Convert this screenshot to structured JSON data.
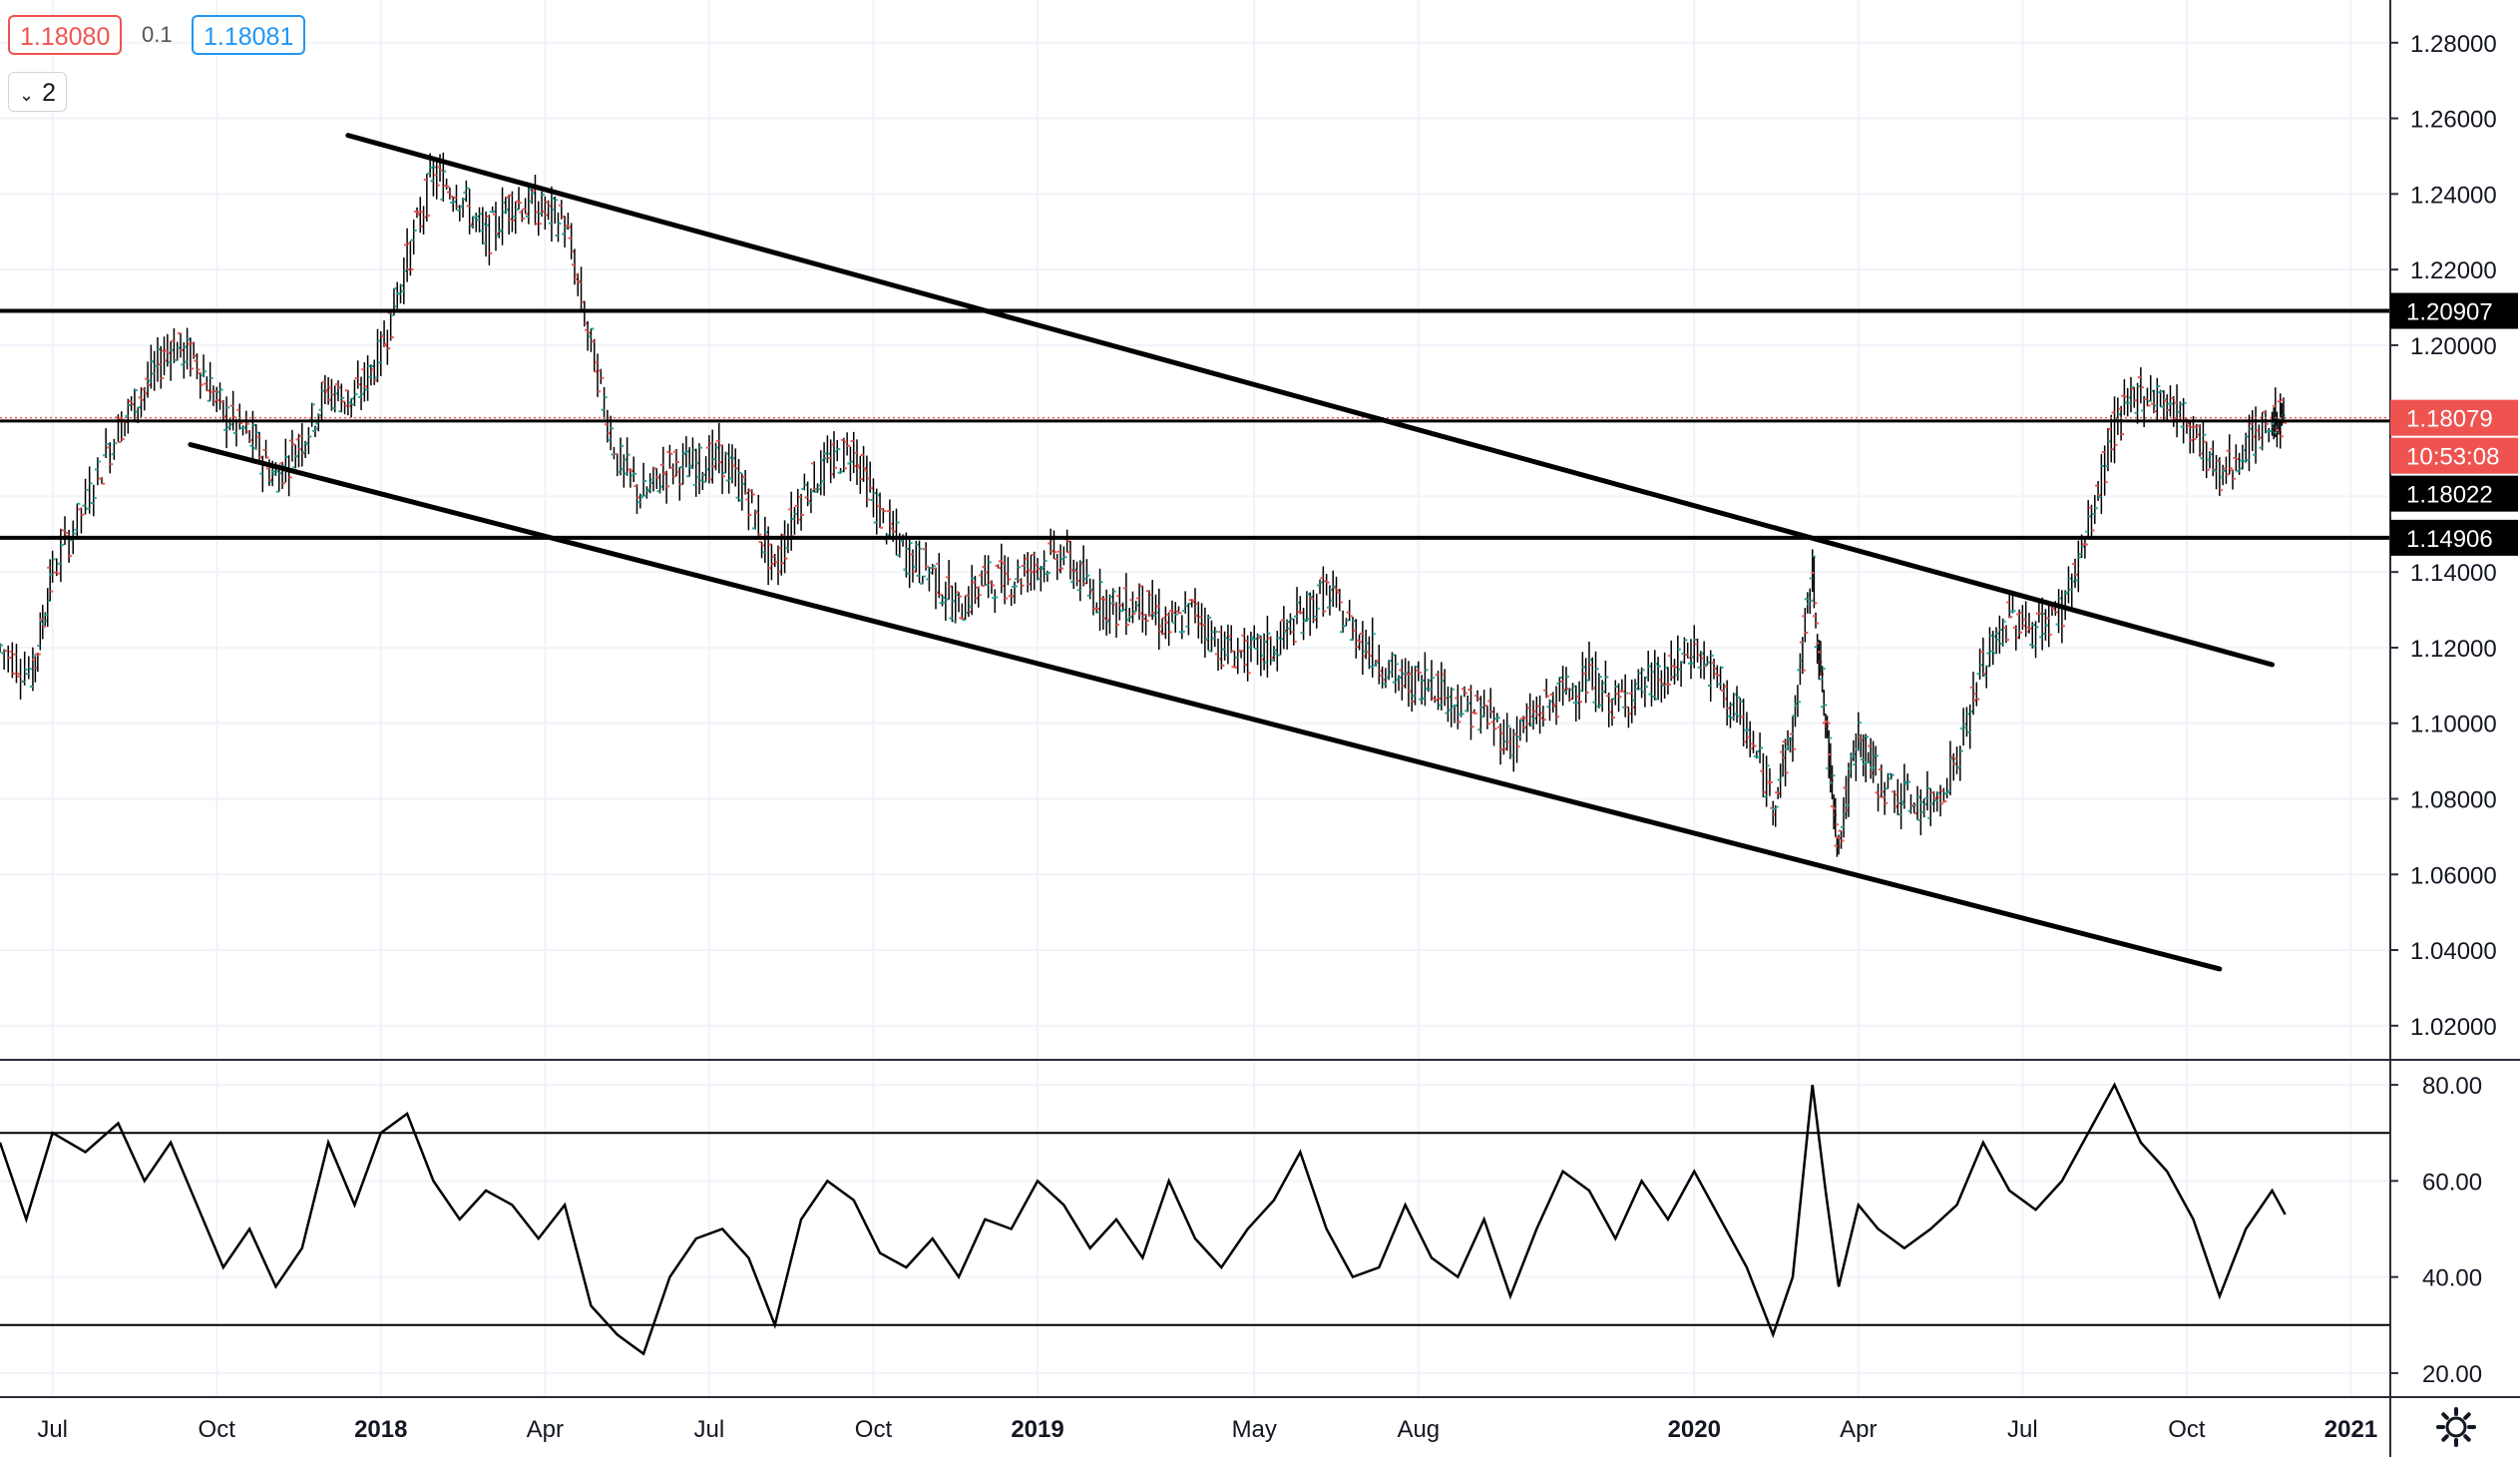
{
  "header": {
    "bid": "1.18080",
    "spread": "0.1",
    "ask": "1.18081",
    "collapse_label": "2"
  },
  "colors": {
    "up": "#26a69a",
    "down": "#ef5350",
    "line": "#000000",
    "grid": "#f0f3fa",
    "bid": "#ef5350",
    "ask": "#2196f3",
    "current_price": "#ef5350",
    "countdown_bg": "#ef5350"
  },
  "icons": {
    "settings": "gear-icon",
    "collapse": "chevron-down-icon"
  },
  "chart_data": [
    {
      "type": "line",
      "panel": "price",
      "title": "",
      "note": "Weekly-style OHLC bars approximated by a close path",
      "y_ticks": [
        "1.28000",
        "1.26000",
        "1.24000",
        "1.22000",
        "1.20000",
        "1.18000",
        "1.16000",
        "1.14000",
        "1.12000",
        "1.10000",
        "1.08000",
        "1.06000",
        "1.04000",
        "1.02000"
      ],
      "ylim": [
        1.0115,
        1.2913
      ],
      "xlim": [
        2017.42,
        2021.06
      ],
      "grid": true,
      "x_tick_labels": [
        {
          "x": 2017.5,
          "label": "Jul"
        },
        {
          "x": 2017.75,
          "label": "Oct"
        },
        {
          "x": 2018.0,
          "label": "2018"
        },
        {
          "x": 2018.25,
          "label": "Apr"
        },
        {
          "x": 2018.5,
          "label": "Jul"
        },
        {
          "x": 2018.75,
          "label": "Oct"
        },
        {
          "x": 2019.0,
          "label": "2019"
        },
        {
          "x": 2019.33,
          "label": "May"
        },
        {
          "x": 2019.58,
          "label": "Aug"
        },
        {
          "x": 2020.0,
          "label": "2020"
        },
        {
          "x": 2020.25,
          "label": "Apr"
        },
        {
          "x": 2020.5,
          "label": "Jul"
        },
        {
          "x": 2020.75,
          "label": "Oct"
        },
        {
          "x": 2021.0,
          "label": "2021"
        }
      ],
      "series": [
        {
          "values": [
            [
              2017.42,
              1.12
            ],
            [
              2017.47,
              1.113
            ],
            [
              2017.5,
              1.14
            ],
            [
              2017.55,
              1.158
            ],
            [
              2017.6,
              1.178
            ],
            [
              2017.64,
              1.188
            ],
            [
              2017.68,
              1.2
            ],
            [
              2017.72,
              1.196
            ],
            [
              2017.76,
              1.182
            ],
            [
              2017.8,
              1.176
            ],
            [
              2017.84,
              1.165
            ],
            [
              2017.88,
              1.175
            ],
            [
              2017.92,
              1.188
            ],
            [
              2017.96,
              1.185
            ],
            [
              2018.0,
              1.198
            ],
            [
              2018.04,
              1.222
            ],
            [
              2018.08,
              1.245
            ],
            [
              2018.12,
              1.24
            ],
            [
              2018.16,
              1.228
            ],
            [
              2018.2,
              1.238
            ],
            [
              2018.24,
              1.236
            ],
            [
              2018.28,
              1.233
            ],
            [
              2018.32,
              1.2
            ],
            [
              2018.36,
              1.17
            ],
            [
              2018.4,
              1.16
            ],
            [
              2018.44,
              1.168
            ],
            [
              2018.48,
              1.168
            ],
            [
              2018.52,
              1.17
            ],
            [
              2018.56,
              1.16
            ],
            [
              2018.6,
              1.14
            ],
            [
              2018.64,
              1.16
            ],
            [
              2018.68,
              1.168
            ],
            [
              2018.72,
              1.173
            ],
            [
              2018.76,
              1.155
            ],
            [
              2018.8,
              1.145
            ],
            [
              2018.84,
              1.14
            ],
            [
              2018.88,
              1.13
            ],
            [
              2018.92,
              1.138
            ],
            [
              2018.96,
              1.138
            ],
            [
              2019.0,
              1.142
            ],
            [
              2019.04,
              1.145
            ],
            [
              2019.08,
              1.135
            ],
            [
              2019.12,
              1.13
            ],
            [
              2019.16,
              1.132
            ],
            [
              2019.2,
              1.125
            ],
            [
              2019.24,
              1.13
            ],
            [
              2019.28,
              1.12
            ],
            [
              2019.32,
              1.118
            ],
            [
              2019.36,
              1.12
            ],
            [
              2019.4,
              1.128
            ],
            [
              2019.44,
              1.135
            ],
            [
              2019.48,
              1.125
            ],
            [
              2019.52,
              1.117
            ],
            [
              2019.56,
              1.11
            ],
            [
              2019.6,
              1.112
            ],
            [
              2019.64,
              1.105
            ],
            [
              2019.68,
              1.103
            ],
            [
              2019.72,
              1.095
            ],
            [
              2019.76,
              1.102
            ],
            [
              2019.8,
              1.108
            ],
            [
              2019.84,
              1.112
            ],
            [
              2019.88,
              1.105
            ],
            [
              2019.92,
              1.11
            ],
            [
              2019.96,
              1.112
            ],
            [
              2020.0,
              1.12
            ],
            [
              2020.04,
              1.11
            ],
            [
              2020.08,
              1.098
            ],
            [
              2020.12,
              1.08
            ],
            [
              2020.15,
              1.097
            ],
            [
              2020.18,
              1.14
            ],
            [
              2020.2,
              1.1
            ],
            [
              2020.22,
              1.068
            ],
            [
              2020.25,
              1.097
            ],
            [
              2020.28,
              1.085
            ],
            [
              2020.32,
              1.08
            ],
            [
              2020.36,
              1.078
            ],
            [
              2020.4,
              1.09
            ],
            [
              2020.44,
              1.115
            ],
            [
              2020.48,
              1.128
            ],
            [
              2020.52,
              1.125
            ],
            [
              2020.56,
              1.13
            ],
            [
              2020.6,
              1.15
            ],
            [
              2020.64,
              1.178
            ],
            [
              2020.68,
              1.188
            ],
            [
              2020.72,
              1.185
            ],
            [
              2020.76,
              1.178
            ],
            [
              2020.8,
              1.165
            ],
            [
              2020.84,
              1.173
            ],
            [
              2020.88,
              1.18
            ],
            [
              2020.9,
              1.181
            ]
          ]
        }
      ],
      "horizontal_lines": [
        {
          "price": 1.20907,
          "label": "1.20907"
        },
        {
          "price": 1.14906,
          "label": "1.14906"
        }
      ],
      "current_price": {
        "price": 1.18079,
        "label": "1.18079",
        "countdown": "10:53:08"
      },
      "prev_close": {
        "price": 1.18022,
        "label": "1.18022"
      },
      "trendlines": [
        {
          "from": [
            2017.95,
            1.2555
          ],
          "to": [
            2020.88,
            1.1155
          ]
        },
        {
          "from": [
            2017.71,
            1.1737
          ],
          "to": [
            2020.8,
            1.035
          ]
        }
      ]
    },
    {
      "type": "line",
      "panel": "oscillator",
      "title": "",
      "y_ticks": [
        "80.00",
        "60.00",
        "40.00",
        "20.00"
      ],
      "ylim": [
        15.0,
        85.0
      ],
      "levels": [
        70,
        30
      ],
      "series": [
        {
          "values": [
            [
              2017.42,
              68
            ],
            [
              2017.46,
              52
            ],
            [
              2017.5,
              70
            ],
            [
              2017.55,
              66
            ],
            [
              2017.6,
              72
            ],
            [
              2017.64,
              60
            ],
            [
              2017.68,
              68
            ],
            [
              2017.72,
              55
            ],
            [
              2017.76,
              42
            ],
            [
              2017.8,
              50
            ],
            [
              2017.84,
              38
            ],
            [
              2017.88,
              46
            ],
            [
              2017.92,
              68
            ],
            [
              2017.96,
              55
            ],
            [
              2018.0,
              70
            ],
            [
              2018.04,
              74
            ],
            [
              2018.08,
              60
            ],
            [
              2018.12,
              52
            ],
            [
              2018.16,
              58
            ],
            [
              2018.2,
              55
            ],
            [
              2018.24,
              48
            ],
            [
              2018.28,
              55
            ],
            [
              2018.32,
              34
            ],
            [
              2018.36,
              28
            ],
            [
              2018.4,
              24
            ],
            [
              2018.44,
              40
            ],
            [
              2018.48,
              48
            ],
            [
              2018.52,
              50
            ],
            [
              2018.56,
              44
            ],
            [
              2018.6,
              30
            ],
            [
              2018.64,
              52
            ],
            [
              2018.68,
              60
            ],
            [
              2018.72,
              56
            ],
            [
              2018.76,
              45
            ],
            [
              2018.8,
              42
            ],
            [
              2018.84,
              48
            ],
            [
              2018.88,
              40
            ],
            [
              2018.92,
              52
            ],
            [
              2018.96,
              50
            ],
            [
              2019.0,
              60
            ],
            [
              2019.04,
              55
            ],
            [
              2019.08,
              46
            ],
            [
              2019.12,
              52
            ],
            [
              2019.16,
              44
            ],
            [
              2019.2,
              60
            ],
            [
              2019.24,
              48
            ],
            [
              2019.28,
              42
            ],
            [
              2019.32,
              50
            ],
            [
              2019.36,
              56
            ],
            [
              2019.4,
              66
            ],
            [
              2019.44,
              50
            ],
            [
              2019.48,
              40
            ],
            [
              2019.52,
              42
            ],
            [
              2019.56,
              55
            ],
            [
              2019.6,
              44
            ],
            [
              2019.64,
              40
            ],
            [
              2019.68,
              52
            ],
            [
              2019.72,
              36
            ],
            [
              2019.76,
              50
            ],
            [
              2019.8,
              62
            ],
            [
              2019.84,
              58
            ],
            [
              2019.88,
              48
            ],
            [
              2019.92,
              60
            ],
            [
              2019.96,
              52
            ],
            [
              2020.0,
              62
            ],
            [
              2020.04,
              52
            ],
            [
              2020.08,
              42
            ],
            [
              2020.12,
              28
            ],
            [
              2020.15,
              40
            ],
            [
              2020.18,
              80
            ],
            [
              2020.2,
              58
            ],
            [
              2020.22,
              38
            ],
            [
              2020.25,
              55
            ],
            [
              2020.28,
              50
            ],
            [
              2020.32,
              46
            ],
            [
              2020.36,
              50
            ],
            [
              2020.4,
              55
            ],
            [
              2020.44,
              68
            ],
            [
              2020.48,
              58
            ],
            [
              2020.52,
              54
            ],
            [
              2020.56,
              60
            ],
            [
              2020.6,
              70
            ],
            [
              2020.64,
              80
            ],
            [
              2020.68,
              68
            ],
            [
              2020.72,
              62
            ],
            [
              2020.76,
              52
            ],
            [
              2020.8,
              36
            ],
            [
              2020.84,
              50
            ],
            [
              2020.88,
              58
            ],
            [
              2020.9,
              53
            ]
          ]
        }
      ]
    }
  ]
}
